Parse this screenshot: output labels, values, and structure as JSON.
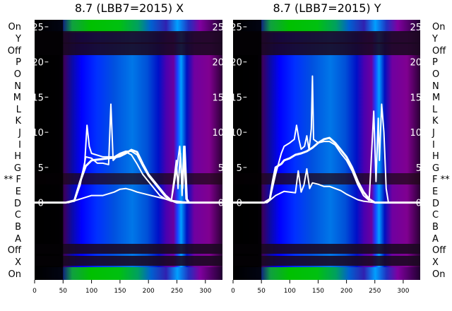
{
  "chart_data": [
    {
      "type": "heatmap",
      "title": "8.7 (LBB7=2015) X",
      "x_ticks": [
        0,
        50,
        100,
        150,
        200,
        250,
        300
      ],
      "y_ticks": [
        0,
        5,
        10,
        15,
        20,
        25
      ],
      "xlim": [
        0,
        330
      ],
      "ylim": [
        -11,
        26
      ],
      "row_labels": [
        "On",
        "Y",
        "Off",
        "P",
        "O",
        "N",
        "M",
        "L",
        "K",
        "J",
        "I",
        "H",
        "G",
        "** F",
        "E",
        "D",
        "C",
        "B",
        "A",
        "Off",
        "X",
        "On"
      ],
      "marked_row": "F",
      "series": [
        {
          "name": "",
          "points": [
            [
              0,
              0
            ],
            [
              55,
              0
            ],
            [
              70,
              0.3
            ],
            [
              80,
              3
            ],
            [
              90,
              5.2
            ],
            [
              100,
              6
            ],
            [
              120,
              6.2
            ],
            [
              140,
              6.4
            ],
            [
              150,
              6.6
            ],
            [
              160,
              7
            ],
            [
              170,
              7.5
            ],
            [
              180,
              7.2
            ],
            [
              190,
              5.5
            ],
            [
              200,
              4
            ],
            [
              210,
              3
            ],
            [
              220,
              2
            ],
            [
              230,
              1
            ],
            [
              240,
              0.3
            ],
            [
              250,
              0
            ],
            [
              260,
              0
            ],
            [
              270,
              0
            ],
            [
              330,
              0
            ]
          ]
        },
        {
          "name": "",
          "points": [
            [
              0,
              0
            ],
            [
              55,
              0
            ],
            [
              70,
              0.3
            ],
            [
              80,
              3
            ],
            [
              88,
              5.5
            ],
            [
              92,
              11
            ],
            [
              96,
              8
            ],
            [
              100,
              7
            ],
            [
              120,
              6.5
            ],
            [
              140,
              6.5
            ],
            [
              150,
              7
            ],
            [
              160,
              7.3
            ],
            [
              170,
              7.3
            ],
            [
              180,
              6.8
            ],
            [
              190,
              5.2
            ],
            [
              200,
              3.8
            ],
            [
              210,
              2.8
            ],
            [
              220,
              1.8
            ],
            [
              230,
              0.8
            ],
            [
              240,
              0.2
            ],
            [
              246,
              4
            ],
            [
              249,
              6
            ],
            [
              252,
              2
            ],
            [
              256,
              7
            ],
            [
              259,
              1
            ],
            [
              262,
              8
            ],
            [
              266,
              0.5
            ],
            [
              270,
              0
            ],
            [
              330,
              0
            ]
          ]
        },
        {
          "name": "",
          "points": [
            [
              0,
              0
            ],
            [
              55,
              0
            ],
            [
              70,
              0.2
            ],
            [
              80,
              2.5
            ],
            [
              90,
              6.5
            ],
            [
              100,
              6.3
            ],
            [
              110,
              5.6
            ],
            [
              120,
              5.6
            ],
            [
              130,
              5.4
            ],
            [
              134,
              14
            ],
            [
              138,
              6
            ],
            [
              145,
              6.6
            ],
            [
              160,
              7.2
            ],
            [
              170,
              6.8
            ],
            [
              180,
              5.5
            ],
            [
              190,
              4
            ],
            [
              200,
              3
            ],
            [
              210,
              2
            ],
            [
              220,
              1
            ],
            [
              230,
              0.5
            ],
            [
              240,
              0.2
            ],
            [
              250,
              5
            ],
            [
              255,
              8
            ],
            [
              260,
              2
            ],
            [
              264,
              8
            ],
            [
              268,
              0.5
            ],
            [
              272,
              0
            ],
            [
              330,
              0
            ]
          ]
        },
        {
          "name": "",
          "points": [
            [
              0,
              0
            ],
            [
              60,
              0
            ],
            [
              80,
              0.5
            ],
            [
              100,
              1
            ],
            [
              120,
              1
            ],
            [
              140,
              1.5
            ],
            [
              150,
              1.9
            ],
            [
              160,
              2
            ],
            [
              170,
              1.8
            ],
            [
              180,
              1.5
            ],
            [
              200,
              1.1
            ],
            [
              220,
              0.7
            ],
            [
              240,
              0.3
            ],
            [
              260,
              0.1
            ],
            [
              280,
              0
            ],
            [
              330,
              0
            ]
          ]
        }
      ]
    },
    {
      "type": "heatmap",
      "title": "8.7 (LBB7=2015) Y",
      "x_ticks": [
        0,
        50,
        100,
        150,
        200,
        250,
        300
      ],
      "y_ticks": [
        0,
        5,
        10,
        15,
        20,
        25
      ],
      "xlim": [
        0,
        330
      ],
      "ylim": [
        -11,
        26
      ],
      "row_labels": [
        "On",
        "Y",
        "Off",
        "P",
        "O",
        "N",
        "M",
        "L",
        "K",
        "J",
        "I",
        "H",
        "G",
        "F **",
        "E",
        "D",
        "C",
        "B",
        "A",
        "Off",
        "X",
        "On"
      ],
      "marked_row": "F",
      "series": [
        {
          "name": "",
          "points": [
            [
              0,
              0
            ],
            [
              55,
              0
            ],
            [
              65,
              0.5
            ],
            [
              70,
              3
            ],
            [
              75,
              5
            ],
            [
              85,
              5.5
            ],
            [
              90,
              6
            ],
            [
              100,
              6.3
            ],
            [
              110,
              6.8
            ],
            [
              120,
              7
            ],
            [
              130,
              7.3
            ],
            [
              140,
              7.8
            ],
            [
              150,
              8.5
            ],
            [
              160,
              9
            ],
            [
              170,
              9.2
            ],
            [
              180,
              8.5
            ],
            [
              190,
              7.5
            ],
            [
              200,
              6.5
            ],
            [
              210,
              5
            ],
            [
              220,
              3
            ],
            [
              230,
              1.5
            ],
            [
              240,
              0.5
            ],
            [
              250,
              0
            ],
            [
              330,
              0
            ]
          ]
        },
        {
          "name": "",
          "points": [
            [
              0,
              0
            ],
            [
              55,
              0
            ],
            [
              65,
              0.5
            ],
            [
              75,
              4
            ],
            [
              85,
              7
            ],
            [
              90,
              8
            ],
            [
              100,
              8.5
            ],
            [
              108,
              9
            ],
            [
              112,
              11
            ],
            [
              116,
              9
            ],
            [
              120,
              7.6
            ],
            [
              126,
              8
            ],
            [
              130,
              9.5
            ],
            [
              134,
              7.5
            ],
            [
              138,
              10.5
            ],
            [
              140,
              18
            ],
            [
              142,
              9
            ],
            [
              150,
              8.5
            ],
            [
              160,
              8.7
            ],
            [
              170,
              8.7
            ],
            [
              180,
              8.2
            ],
            [
              190,
              7
            ],
            [
              200,
              6
            ],
            [
              210,
              4.5
            ],
            [
              220,
              2.5
            ],
            [
              230,
              1
            ],
            [
              240,
              0.3
            ],
            [
              248,
              13
            ],
            [
              252,
              3
            ],
            [
              256,
              12
            ],
            [
              258,
              6
            ],
            [
              262,
              14
            ],
            [
              266,
              10
            ],
            [
              270,
              2
            ],
            [
              274,
              0
            ],
            [
              330,
              0
            ]
          ]
        },
        {
          "name": "",
          "points": [
            [
              0,
              0
            ],
            [
              60,
              0
            ],
            [
              75,
              1
            ],
            [
              90,
              1.6
            ],
            [
              100,
              1.5
            ],
            [
              110,
              1.4
            ],
            [
              115,
              4.5
            ],
            [
              120,
              1.5
            ],
            [
              125,
              2.5
            ],
            [
              130,
              4.8
            ],
            [
              135,
              2
            ],
            [
              140,
              2.8
            ],
            [
              150,
              2.6
            ],
            [
              160,
              2.3
            ],
            [
              170,
              2.3
            ],
            [
              180,
              2
            ],
            [
              190,
              1.7
            ],
            [
              200,
              1.2
            ],
            [
              210,
              0.8
            ],
            [
              220,
              0.4
            ],
            [
              230,
              0.2
            ],
            [
              250,
              0
            ],
            [
              330,
              0
            ]
          ]
        }
      ]
    }
  ]
}
